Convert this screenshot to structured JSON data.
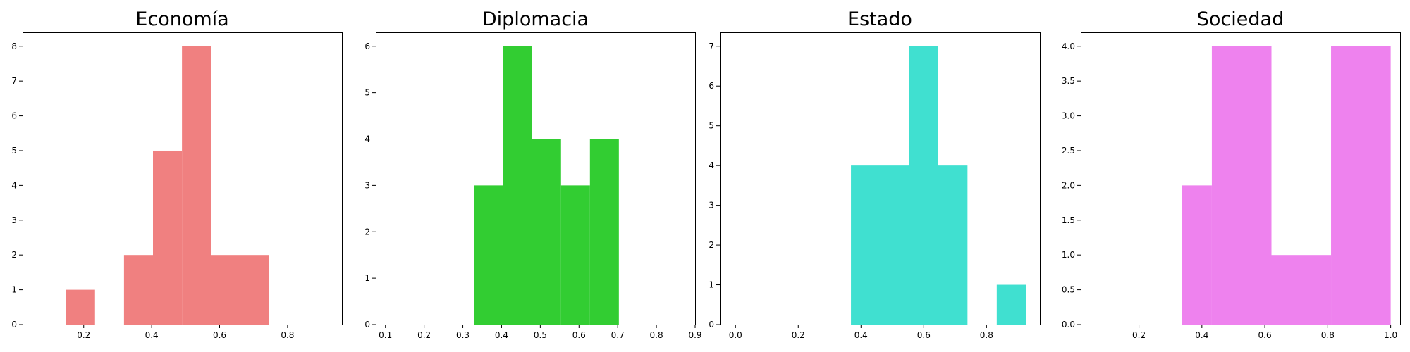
{
  "chart_data": [
    {
      "type": "bar",
      "title": "Economía",
      "color": "#F08080",
      "bins": [
        {
          "start": 0.148,
          "end": 0.2333,
          "count": 1
        },
        {
          "start": 0.2333,
          "end": 0.3186,
          "count": 0
        },
        {
          "start": 0.3186,
          "end": 0.4039,
          "count": 2
        },
        {
          "start": 0.4039,
          "end": 0.4892,
          "count": 5
        },
        {
          "start": 0.4892,
          "end": 0.5745,
          "count": 8
        },
        {
          "start": 0.5745,
          "end": 0.6598,
          "count": 2
        },
        {
          "start": 0.6598,
          "end": 0.7451,
          "count": 2
        }
      ],
      "xlim": [
        0.02,
        0.96
      ],
      "ylim": [
        0,
        8.4
      ],
      "xticks": [
        0.2,
        0.4,
        0.6,
        0.8
      ],
      "xtick_labels": [
        "0.2",
        "0.4",
        "0.6",
        "0.8"
      ],
      "yticks": [
        0,
        1,
        2,
        3,
        4,
        5,
        6,
        7,
        8
      ],
      "ytick_labels": [
        "0",
        "1",
        "2",
        "3",
        "4",
        "5",
        "6",
        "7",
        "8"
      ]
    },
    {
      "type": "bar",
      "title": "Diplomacia",
      "color": "#32CD32",
      "bins": [
        {
          "start": 0.3295,
          "end": 0.4042,
          "count": 3
        },
        {
          "start": 0.4042,
          "end": 0.4789,
          "count": 6
        },
        {
          "start": 0.4789,
          "end": 0.5536,
          "count": 4
        },
        {
          "start": 0.5536,
          "end": 0.6283,
          "count": 3
        },
        {
          "start": 0.6283,
          "end": 0.703,
          "count": 4
        }
      ],
      "xlim": [
        0.075,
        0.9
      ],
      "ylim": [
        0,
        6.3
      ],
      "xticks": [
        0.1,
        0.2,
        0.3,
        0.4,
        0.5,
        0.6,
        0.7,
        0.8,
        0.9
      ],
      "xtick_labels": [
        "0.1",
        "0.2",
        "0.3",
        "0.4",
        "0.5",
        "0.6",
        "0.7",
        "0.8",
        "0.9"
      ],
      "yticks": [
        0,
        1,
        2,
        3,
        4,
        5,
        6
      ],
      "ytick_labels": [
        "0",
        "1",
        "2",
        "3",
        "4",
        "5",
        "6"
      ]
    },
    {
      "type": "bar",
      "title": "Estado",
      "color": "#40E0D0",
      "bins": [
        {
          "start": 0.368,
          "end": 0.5526,
          "count": 4
        },
        {
          "start": 0.5526,
          "end": 0.6462,
          "count": 7
        },
        {
          "start": 0.6462,
          "end": 0.7394,
          "count": 4
        },
        {
          "start": 0.7394,
          "end": 0.8326,
          "count": 0
        },
        {
          "start": 0.8326,
          "end": 0.9258,
          "count": 1
        }
      ],
      "xlim": [
        -0.05,
        0.97
      ],
      "ylim": [
        0,
        7.35
      ],
      "xticks": [
        0.0,
        0.2,
        0.4,
        0.6,
        0.8
      ],
      "xtick_labels": [
        "0.0",
        "0.2",
        "0.4",
        "0.6",
        "0.8"
      ],
      "yticks": [
        0,
        1,
        2,
        3,
        4,
        5,
        6,
        7
      ],
      "ytick_labels": [
        "0",
        "1",
        "2",
        "3",
        "4",
        "5",
        "6",
        "7"
      ]
    },
    {
      "type": "bar",
      "title": "Sociedad",
      "color": "#EE82EE",
      "bins": [
        {
          "start": 0.3368,
          "end": 0.4316,
          "count": 2
        },
        {
          "start": 0.4316,
          "end": 0.6211,
          "count": 4
        },
        {
          "start": 0.6211,
          "end": 0.8105,
          "count": 1
        },
        {
          "start": 0.8105,
          "end": 1.0,
          "count": 4
        }
      ],
      "xlim": [
        0.015,
        1.03
      ],
      "ylim": [
        0,
        4.2
      ],
      "xticks": [
        0.2,
        0.4,
        0.6,
        0.8,
        1.0
      ],
      "xtick_labels": [
        "0.2",
        "0.4",
        "0.6",
        "0.8",
        "1.0"
      ],
      "yticks": [
        0.0,
        0.5,
        1.0,
        1.5,
        2.0,
        2.5,
        3.0,
        3.5,
        4.0
      ],
      "ytick_labels": [
        "0.0",
        "0.5",
        "1.0",
        "1.5",
        "2.0",
        "2.5",
        "3.0",
        "3.5",
        "4.0"
      ]
    }
  ]
}
